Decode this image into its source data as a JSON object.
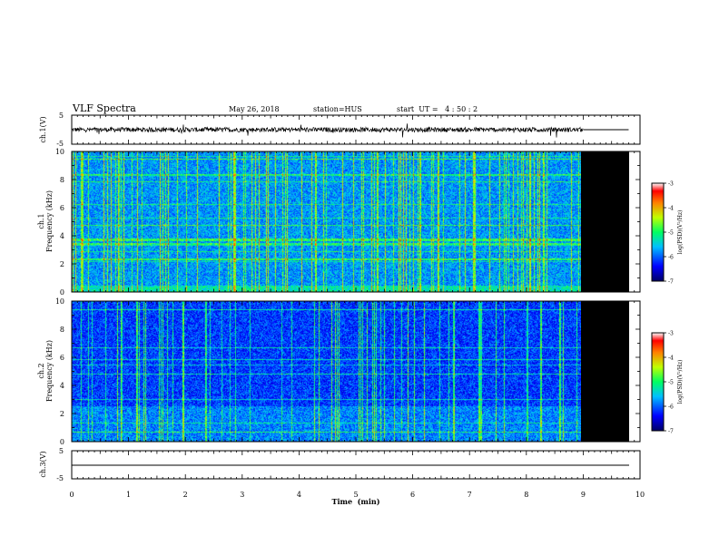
{
  "header": {
    "title": "VLF Spectra",
    "date": "May 26, 2018",
    "station": "station=HUS",
    "start": "start  UT =   4 : 50 : 2"
  },
  "chart_data": [
    {
      "type": "line",
      "name": "ch1-waveform",
      "ylabel": "ch.1(V)",
      "ylim": [
        -5,
        5
      ],
      "yticks": [
        "5",
        "-5"
      ],
      "xlim": [
        0,
        10
      ],
      "data_end_min": 9.0
    },
    {
      "type": "heatmap",
      "name": "ch1-spectrogram",
      "ylabel_line1": "ch.1",
      "ylabel_line2": "Frequency (kHz)",
      "ylim": [
        0,
        10
      ],
      "yticks": [
        "0",
        "2",
        "4",
        "6",
        "8",
        "10"
      ],
      "xlim": [
        0,
        10
      ],
      "data_end_min": 9.0,
      "colorbar": {
        "label": "log(PSD)(V²/Hz)",
        "range": [
          -7,
          -3
        ],
        "ticks": [
          "-3",
          "-4",
          "-5",
          "-6",
          "-7"
        ]
      }
    },
    {
      "type": "heatmap",
      "name": "ch2-spectrogram",
      "ylabel_line1": "ch.2",
      "ylabel_line2": "Frequency (kHz)",
      "ylim": [
        0,
        10
      ],
      "yticks": [
        "0",
        "2",
        "4",
        "6",
        "8",
        "10"
      ],
      "xlim": [
        0,
        10
      ],
      "data_end_min": 9.0,
      "colorbar": {
        "label": "log(PSD)(V²/Hz)",
        "range": [
          -7,
          -3
        ],
        "ticks": [
          "-3",
          "-4",
          "-5",
          "-6",
          "-7"
        ]
      }
    },
    {
      "type": "line",
      "name": "ch3-waveform",
      "ylabel": "ch.3(V)",
      "ylim": [
        -5,
        5
      ],
      "yticks": [
        "5",
        "-5"
      ],
      "xlim": [
        0,
        10
      ]
    }
  ],
  "xaxis": {
    "label": "Time  (min)",
    "ticks": [
      "0",
      "1",
      "2",
      "3",
      "4",
      "5",
      "6",
      "7",
      "8",
      "9",
      "10"
    ]
  },
  "colors": {
    "background": "#ffffff",
    "no_data": "#000000",
    "waveform": "#000000"
  }
}
